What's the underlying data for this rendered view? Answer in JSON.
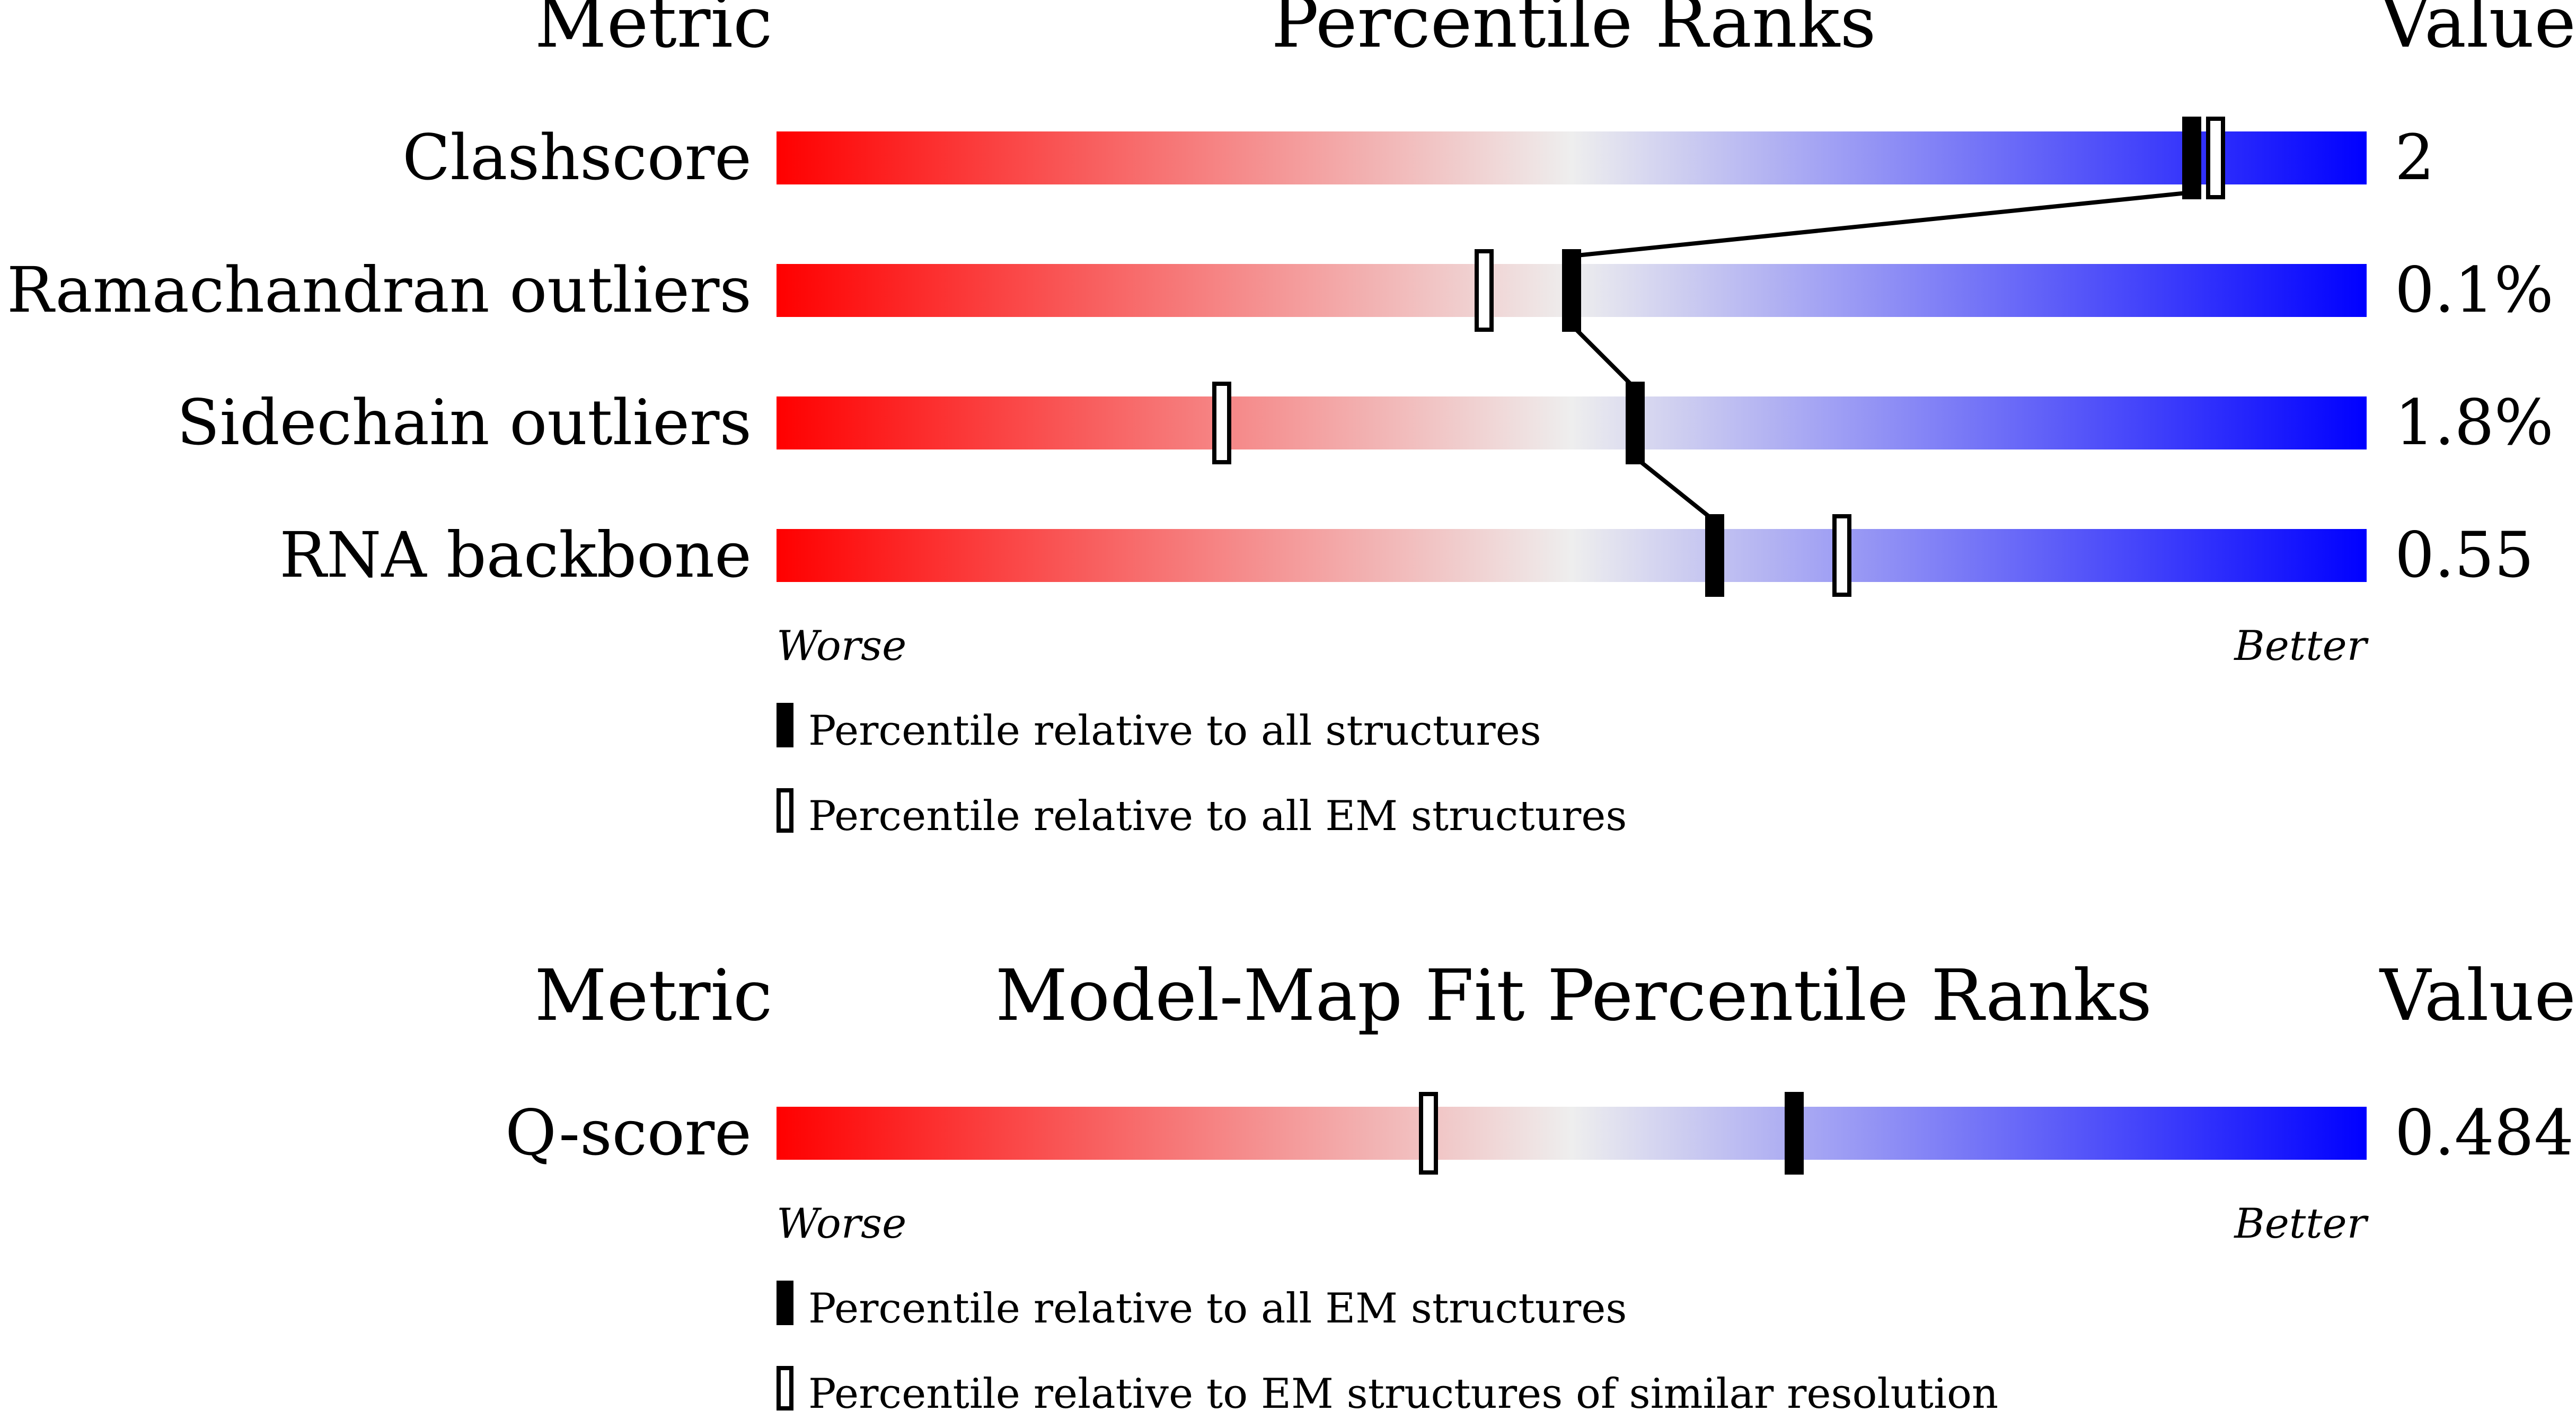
{
  "chart_data": [
    {
      "type": "bar",
      "headers": {
        "metric": "Metric",
        "title": "Percentile Ranks",
        "value": "Value"
      },
      "rows": [
        {
          "label": "Clashscore",
          "value": "2",
          "pct_all": 89,
          "pct_em": 90.5
        },
        {
          "label": "Ramachandran outliers",
          "value": "0.1%",
          "pct_all": 50,
          "pct_em": 44.5
        },
        {
          "label": "Sidechain outliers",
          "value": "1.8%",
          "pct_all": 54,
          "pct_em": 28
        },
        {
          "label": "RNA backbone",
          "value": "0.55",
          "pct_all": 59,
          "pct_em": 67
        }
      ],
      "worse": "Worse",
      "better": "Better",
      "legend": {
        "filled": "Percentile relative to all structures",
        "open": "Percentile relative to all EM structures"
      }
    },
    {
      "type": "bar",
      "headers": {
        "metric": "Metric",
        "title": "Model-Map Fit Percentile Ranks",
        "value": "Value"
      },
      "rows": [
        {
          "label": "Q-score",
          "value": "0.484",
          "pct_all": 64,
          "pct_em": 41
        }
      ],
      "worse": "Worse",
      "better": "Better",
      "legend": {
        "filled": "Percentile relative to all EM structures",
        "open": "Percentile relative to EM structures of similar resolution"
      }
    }
  ],
  "colors": {
    "worse": "#ff0000",
    "middle": "#eeeeee",
    "better": "#0000ff"
  }
}
